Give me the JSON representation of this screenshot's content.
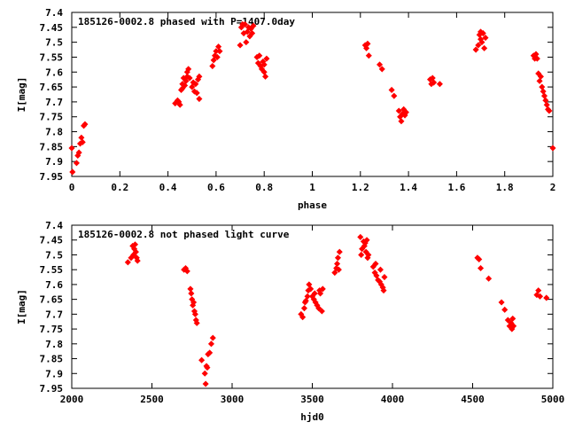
{
  "chart_data": [
    {
      "type": "scatter",
      "title": "185126-0002.8 phased with P=1407.0day",
      "xlabel": "phase",
      "ylabel": "I[mag]",
      "xlim": [
        0,
        2
      ],
      "ylim": [
        7.4,
        7.95
      ],
      "y_inverted": true,
      "xticks": [
        "0",
        "0.2",
        "0.4",
        "0.6",
        "0.8",
        "1",
        "1.2",
        "1.4",
        "1.6",
        "1.8",
        "2"
      ],
      "yticks": [
        "7.4",
        "7.45",
        "7.5",
        "7.55",
        "7.6",
        "7.65",
        "7.7",
        "7.75",
        "7.8",
        "7.85",
        "7.9",
        "7.95"
      ],
      "marker_color": "#ff0000",
      "points": [
        [
          0.0,
          7.855
        ],
        [
          0.003,
          7.935
        ],
        [
          0.02,
          7.905
        ],
        [
          0.025,
          7.88
        ],
        [
          0.03,
          7.87
        ],
        [
          0.035,
          7.84
        ],
        [
          0.04,
          7.82
        ],
        [
          0.045,
          7.835
        ],
        [
          0.05,
          7.78
        ],
        [
          0.055,
          7.775
        ],
        [
          0.43,
          7.705
        ],
        [
          0.44,
          7.695
        ],
        [
          0.445,
          7.7
        ],
        [
          0.45,
          7.71
        ],
        [
          0.455,
          7.66
        ],
        [
          0.46,
          7.655
        ],
        [
          0.46,
          7.64
        ],
        [
          0.465,
          7.62
        ],
        [
          0.47,
          7.645
        ],
        [
          0.475,
          7.63
        ],
        [
          0.48,
          7.6
        ],
        [
          0.48,
          7.615
        ],
        [
          0.485,
          7.59
        ],
        [
          0.49,
          7.62
        ],
        [
          0.5,
          7.65
        ],
        [
          0.505,
          7.635
        ],
        [
          0.51,
          7.665
        ],
        [
          0.515,
          7.64
        ],
        [
          0.52,
          7.67
        ],
        [
          0.525,
          7.625
        ],
        [
          0.53,
          7.615
        ],
        [
          0.53,
          7.69
        ],
        [
          0.585,
          7.58
        ],
        [
          0.59,
          7.56
        ],
        [
          0.595,
          7.545
        ],
        [
          0.6,
          7.53
        ],
        [
          0.605,
          7.55
        ],
        [
          0.61,
          7.515
        ],
        [
          0.615,
          7.53
        ],
        [
          0.7,
          7.51
        ],
        [
          0.705,
          7.45
        ],
        [
          0.71,
          7.44
        ],
        [
          0.715,
          7.47
        ],
        [
          0.72,
          7.44
        ],
        [
          0.725,
          7.5
        ],
        [
          0.73,
          7.465
        ],
        [
          0.735,
          7.45
        ],
        [
          0.74,
          7.48
        ],
        [
          0.745,
          7.455
        ],
        [
          0.75,
          7.47
        ],
        [
          0.755,
          7.445
        ],
        [
          0.77,
          7.55
        ],
        [
          0.775,
          7.57
        ],
        [
          0.78,
          7.545
        ],
        [
          0.785,
          7.58
        ],
        [
          0.79,
          7.59
        ],
        [
          0.795,
          7.565
        ],
        [
          0.8,
          7.6
        ],
        [
          0.8,
          7.575
        ],
        [
          0.805,
          7.615
        ],
        [
          0.81,
          7.555
        ],
        [
          1.22,
          7.51
        ],
        [
          1.225,
          7.52
        ],
        [
          1.23,
          7.505
        ],
        [
          1.235,
          7.545
        ],
        [
          1.28,
          7.575
        ],
        [
          1.29,
          7.59
        ],
        [
          1.33,
          7.66
        ],
        [
          1.34,
          7.68
        ],
        [
          1.36,
          7.73
        ],
        [
          1.365,
          7.75
        ],
        [
          1.37,
          7.765
        ],
        [
          1.375,
          7.74
        ],
        [
          1.38,
          7.725
        ],
        [
          1.385,
          7.745
        ],
        [
          1.39,
          7.735
        ],
        [
          1.49,
          7.625
        ],
        [
          1.495,
          7.64
        ],
        [
          1.5,
          7.62
        ],
        [
          1.505,
          7.635
        ],
        [
          1.53,
          7.64
        ],
        [
          1.68,
          7.525
        ],
        [
          1.69,
          7.51
        ],
        [
          1.695,
          7.475
        ],
        [
          1.7,
          7.465
        ],
        [
          1.7,
          7.49
        ],
        [
          1.705,
          7.5
        ],
        [
          1.71,
          7.47
        ],
        [
          1.715,
          7.52
        ],
        [
          1.72,
          7.485
        ],
        [
          1.92,
          7.545
        ],
        [
          1.925,
          7.555
        ],
        [
          1.93,
          7.54
        ],
        [
          1.935,
          7.555
        ],
        [
          1.94,
          7.605
        ],
        [
          1.945,
          7.63
        ],
        [
          1.95,
          7.615
        ],
        [
          1.955,
          7.65
        ],
        [
          1.96,
          7.665
        ],
        [
          1.965,
          7.68
        ],
        [
          1.97,
          7.695
        ],
        [
          1.975,
          7.71
        ],
        [
          1.98,
          7.725
        ],
        [
          1.985,
          7.73
        ],
        [
          2.0,
          7.855
        ]
      ]
    },
    {
      "type": "scatter",
      "title": "185126-0002.8 not phased light curve",
      "xlabel": "hjd0",
      "ylabel": "I[mag]",
      "xlim": [
        2000,
        5000
      ],
      "ylim": [
        7.4,
        7.95
      ],
      "y_inverted": true,
      "xticks": [
        "2000",
        "2500",
        "3000",
        "3500",
        "4000",
        "4500",
        "5000"
      ],
      "yticks": [
        "7.4",
        "7.45",
        "7.5",
        "7.55",
        "7.6",
        "7.65",
        "7.7",
        "7.75",
        "7.8",
        "7.85",
        "7.9",
        "7.95"
      ],
      "marker_color": "#ff0000",
      "points": [
        [
          2350,
          7.525
        ],
        [
          2370,
          7.51
        ],
        [
          2380,
          7.47
        ],
        [
          2385,
          7.5
        ],
        [
          2390,
          7.48
        ],
        [
          2395,
          7.465
        ],
        [
          2400,
          7.49
        ],
        [
          2405,
          7.51
        ],
        [
          2410,
          7.52
        ],
        [
          2700,
          7.55
        ],
        [
          2710,
          7.545
        ],
        [
          2720,
          7.555
        ],
        [
          2740,
          7.615
        ],
        [
          2745,
          7.63
        ],
        [
          2750,
          7.65
        ],
        [
          2755,
          7.67
        ],
        [
          2760,
          7.66
        ],
        [
          2765,
          7.69
        ],
        [
          2770,
          7.7
        ],
        [
          2775,
          7.72
        ],
        [
          2780,
          7.73
        ],
        [
          2810,
          7.855
        ],
        [
          2830,
          7.9
        ],
        [
          2835,
          7.935
        ],
        [
          2840,
          7.875
        ],
        [
          2845,
          7.88
        ],
        [
          2850,
          7.835
        ],
        [
          2860,
          7.83
        ],
        [
          2870,
          7.8
        ],
        [
          2880,
          7.78
        ],
        [
          3430,
          7.7
        ],
        [
          3440,
          7.71
        ],
        [
          3450,
          7.68
        ],
        [
          3455,
          7.66
        ],
        [
          3460,
          7.655
        ],
        [
          3470,
          7.64
        ],
        [
          3475,
          7.62
        ],
        [
          3480,
          7.6
        ],
        [
          3490,
          7.615
        ],
        [
          3500,
          7.64
        ],
        [
          3510,
          7.65
        ],
        [
          3515,
          7.63
        ],
        [
          3520,
          7.66
        ],
        [
          3530,
          7.67
        ],
        [
          3540,
          7.68
        ],
        [
          3545,
          7.62
        ],
        [
          3550,
          7.63
        ],
        [
          3560,
          7.69
        ],
        [
          3565,
          7.615
        ],
        [
          3640,
          7.56
        ],
        [
          3650,
          7.545
        ],
        [
          3655,
          7.53
        ],
        [
          3660,
          7.51
        ],
        [
          3665,
          7.55
        ],
        [
          3670,
          7.49
        ],
        [
          3800,
          7.44
        ],
        [
          3805,
          7.5
        ],
        [
          3810,
          7.48
        ],
        [
          3820,
          7.455
        ],
        [
          3825,
          7.47
        ],
        [
          3830,
          7.46
        ],
        [
          3835,
          7.49
        ],
        [
          3840,
          7.45
        ],
        [
          3845,
          7.51
        ],
        [
          3850,
          7.5
        ],
        [
          3880,
          7.54
        ],
        [
          3890,
          7.56
        ],
        [
          3895,
          7.53
        ],
        [
          3900,
          7.57
        ],
        [
          3910,
          7.585
        ],
        [
          3920,
          7.59
        ],
        [
          3925,
          7.55
        ],
        [
          3930,
          7.6
        ],
        [
          3940,
          7.61
        ],
        [
          3945,
          7.62
        ],
        [
          3950,
          7.575
        ],
        [
          4530,
          7.51
        ],
        [
          4540,
          7.515
        ],
        [
          4550,
          7.545
        ],
        [
          4600,
          7.58
        ],
        [
          4680,
          7.66
        ],
        [
          4700,
          7.685
        ],
        [
          4720,
          7.72
        ],
        [
          4730,
          7.74
        ],
        [
          4740,
          7.73
        ],
        [
          4745,
          7.75
        ],
        [
          4750,
          7.715
        ],
        [
          4755,
          7.74
        ],
        [
          4900,
          7.635
        ],
        [
          4910,
          7.62
        ],
        [
          4920,
          7.64
        ],
        [
          4960,
          7.645
        ]
      ]
    }
  ]
}
